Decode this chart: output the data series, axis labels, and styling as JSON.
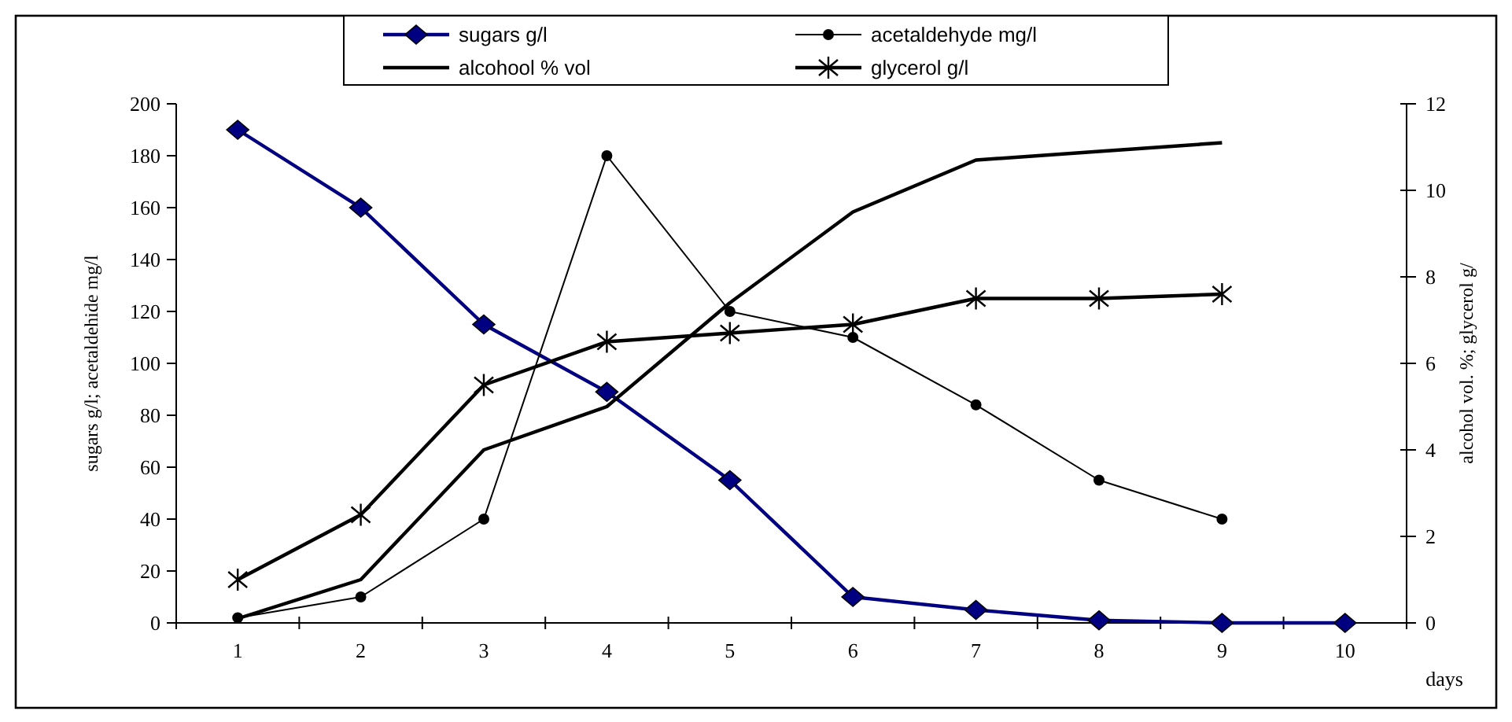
{
  "chart_data": {
    "type": "line",
    "xlabel": "days",
    "ylabel": "sugars g/l; acetaldehide mg/l",
    "y2label": "alcohol vol. %; glycerol g/",
    "categories": [
      "1",
      "2",
      "3",
      "4",
      "5",
      "6",
      "7",
      "8",
      "9",
      "10"
    ],
    "ylim": [
      0,
      200
    ],
    "yticks": [
      0,
      20,
      40,
      60,
      80,
      100,
      120,
      140,
      160,
      180,
      200
    ],
    "y2lim": [
      0,
      12
    ],
    "y2ticks": [
      0,
      2,
      4,
      6,
      8,
      10,
      12
    ],
    "grid": false,
    "legend": "top",
    "line_style": "solid",
    "series": [
      {
        "name": "sugars g/l",
        "color": "#000080",
        "marker": "diamond",
        "values": [
          190,
          160,
          115,
          89,
          55,
          10,
          5,
          1,
          0,
          0
        ]
      },
      {
        "name": "acetaldehyde mg/l",
        "color": "#000000",
        "marker": "circle",
        "values": [
          2,
          10,
          40,
          180,
          120,
          110,
          84,
          55,
          40,
          null
        ]
      },
      {
        "name": "alcohool % vol",
        "color": "#000000",
        "marker": "none",
        "axis": "y2",
        "values": [
          0.1,
          1.0,
          4.0,
          5.0,
          7.4,
          9.5,
          10.7,
          10.9,
          11.1,
          null
        ]
      },
      {
        "name": "glycerol g/l",
        "color": "#000000",
        "marker": "cross",
        "axis": "y2",
        "values": [
          1.0,
          2.5,
          5.5,
          6.5,
          6.7,
          6.9,
          7.5,
          7.5,
          7.6,
          null
        ]
      }
    ]
  }
}
